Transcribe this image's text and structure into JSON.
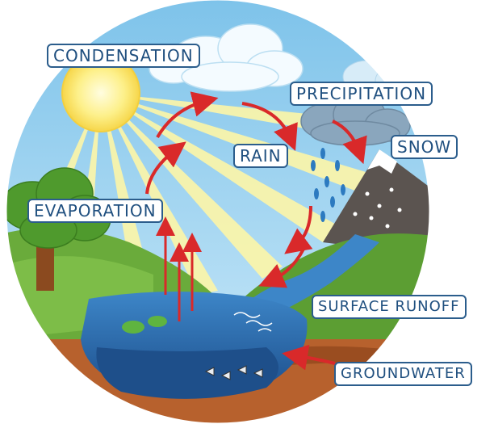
{
  "labels": {
    "condensation": "CONDENSATION",
    "precipitation": "PRECIPITATION",
    "rain": "RAIN",
    "snow": "SNOW",
    "evaporation": "EVAPORATION",
    "surface_runoff": "SURFACE RUNOFF",
    "groundwater": "GROUNDWATER"
  },
  "colors": {
    "sky": "#9fd4f2",
    "sun": "#fbe97a",
    "water": "#2d6fb5",
    "deep_water": "#1e4f8a",
    "grass": "#6aab3b",
    "soil": "#b7612d",
    "mountain": "#5b5450",
    "arrow": "#d9292a",
    "label_border": "#2b5d8c",
    "label_text": "#1f4f7f"
  }
}
